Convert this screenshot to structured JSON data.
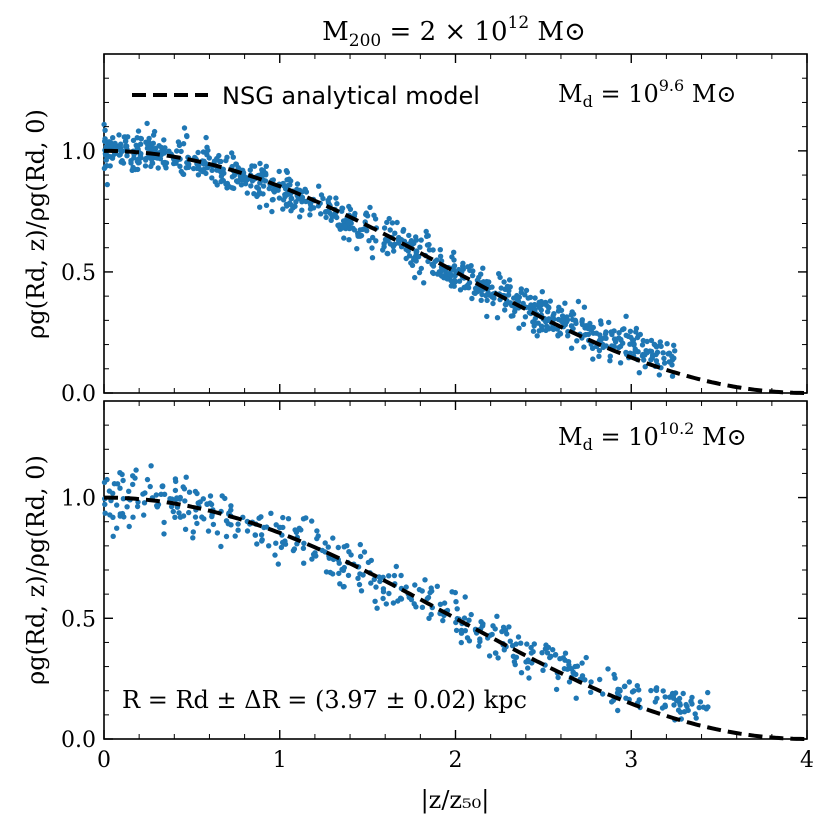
{
  "title": "M₂₀₀ = 2 × 10¹² M⊙",
  "xlabel": "|z/z₅₀|",
  "legend": {
    "label": "NSG analytical model",
    "placement": "top-left of upper panel"
  },
  "colors": {
    "scatter": "#1f77b4",
    "model": "#000000",
    "axes": "#000000"
  },
  "chart_data": [
    {
      "type": "scatter",
      "panel": "top",
      "annotation": "M_d = 10^9.6 M⊙",
      "ylabel": "ρg(Rd, z)/ρg(Rd, 0)",
      "xlim": [
        0,
        4
      ],
      "ylim": [
        0,
        1.4
      ],
      "xticks": [
        0,
        1,
        2,
        3,
        4
      ],
      "yticks": [
        0.0,
        0.5,
        1.0
      ],
      "ytick_labels": [
        "0.0",
        "0.5",
        "1.0"
      ],
      "scatter": {
        "x_range": [
          0,
          3.25
        ],
        "spread": 0.04,
        "approx_count": 900
      },
      "model": {
        "name": "NSG analytical model",
        "form": "0.5*(1+cos(pi*x/4))",
        "x_range": [
          0,
          4
        ]
      }
    },
    {
      "type": "scatter",
      "panel": "bottom",
      "annotation": "M_d = 10^10.2 M⊙",
      "footnote": "R = R_d ± ΔR = (3.97 ± 0.02) kpc",
      "ylabel": "ρg(Rd, z)/ρg(Rd, 0)",
      "xlabel": "|z/z₅₀|",
      "xlim": [
        0,
        4
      ],
      "ylim": [
        0,
        1.4
      ],
      "xticks": [
        0,
        1,
        2,
        3,
        4
      ],
      "xtick_labels": [
        "0",
        "1",
        "2",
        "3",
        "4"
      ],
      "yticks": [
        0.0,
        0.5,
        1.0
      ],
      "ytick_labels": [
        "0.0",
        "0.5",
        "1.0"
      ],
      "scatter": {
        "x_range": [
          0,
          3.45
        ],
        "spread": 0.07,
        "approx_count": 450
      },
      "model": {
        "name": "NSG analytical model",
        "form": "0.5*(1+cos(pi*x/4))",
        "x_range": [
          0,
          4
        ]
      }
    }
  ],
  "annotations": {
    "top": {
      "base": "M",
      "sub": "d",
      "op": " = 10",
      "exp": "9.6",
      "unit": " M⊙"
    },
    "bottom": {
      "base": "M",
      "sub": "d",
      "op": " = 10",
      "exp": "10.2",
      "unit": " M⊙"
    },
    "footnote": "R = Rd ± ΔR = (3.97 ± 0.02)  kpc"
  }
}
